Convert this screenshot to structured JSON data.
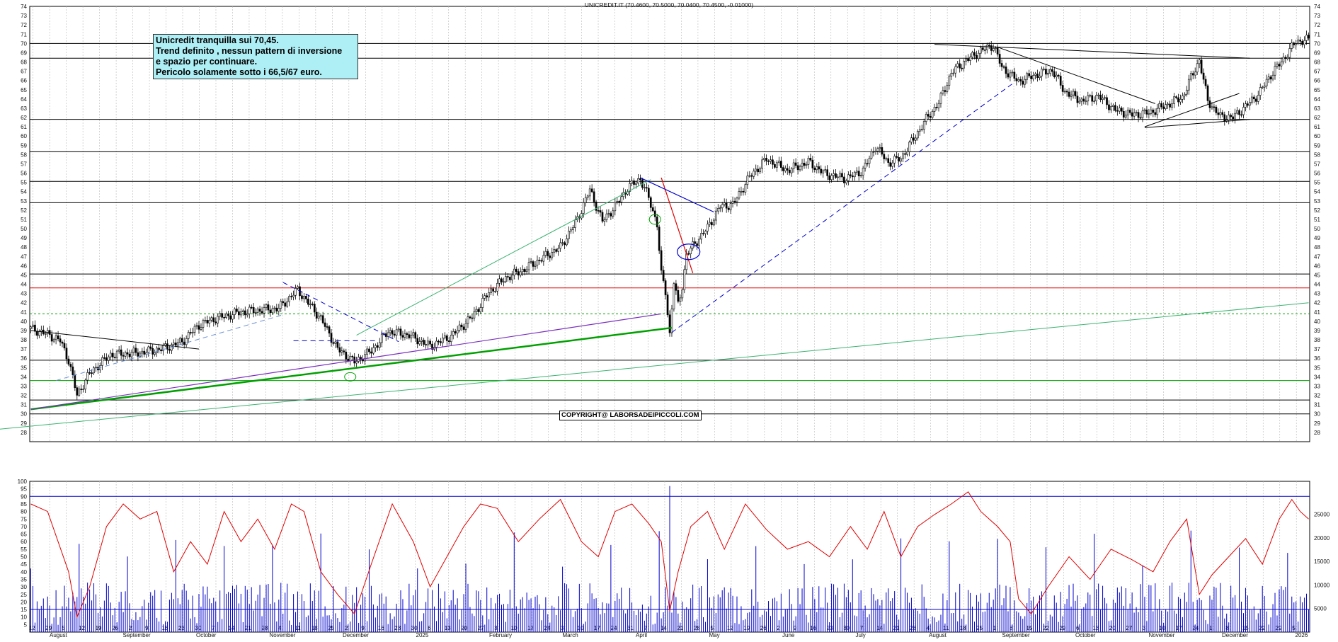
{
  "chart_data": [
    {
      "type": "candlestick",
      "title": "UNICREDIT.IT (70.4600, 70.5000, 70.0400, 70.4500, -0.01000)",
      "ylim": [
        27,
        74
      ],
      "y_ticks": [
        28,
        29,
        30,
        31,
        32,
        33,
        34,
        35,
        36,
        37,
        38,
        39,
        40,
        41,
        42,
        43,
        44,
        45,
        46,
        47,
        48,
        49,
        50,
        51,
        52,
        53,
        54,
        55,
        56,
        57,
        58,
        59,
        60,
        61,
        62,
        63,
        64,
        65,
        66,
        67,
        68,
        69,
        70,
        71,
        72,
        73,
        74
      ],
      "x_day_labels": [
        "12",
        "29",
        "5",
        "12",
        "19",
        "26",
        "2",
        "9",
        "16",
        "23",
        "30",
        "7",
        "14",
        "21",
        "28",
        "4",
        "11",
        "18",
        "25",
        "2",
        "9",
        "16",
        "23",
        "30",
        "6",
        "13",
        "20",
        "27",
        "3",
        "10",
        "17",
        "24",
        "3",
        "10",
        "17",
        "24",
        "31",
        "7",
        "14",
        "21",
        "28",
        "5",
        "12",
        "19",
        "26",
        "2",
        "9",
        "16",
        "23",
        "30",
        "7",
        "14",
        "21",
        "28",
        "4",
        "11",
        "18",
        "25",
        "1",
        "8",
        "15",
        "22",
        "29",
        "6",
        "13",
        "20",
        "27",
        "3",
        "10",
        "17",
        "24",
        "1",
        "8",
        "15",
        "22",
        "29",
        "5"
      ],
      "x_month_labels": [
        "August",
        "September",
        "October",
        "November",
        "December",
        "2025",
        "February",
        "March",
        "April",
        "May",
        "June",
        "July",
        "August",
        "September",
        "October",
        "November",
        "December",
        "2026"
      ],
      "price_path_points": [
        [
          0,
          39.2
        ],
        [
          8,
          38.6
        ],
        [
          14,
          37.9
        ],
        [
          18,
          35.8
        ],
        [
          22,
          32.0
        ],
        [
          28,
          34.4
        ],
        [
          38,
          36.4
        ],
        [
          52,
          36.6
        ],
        [
          62,
          37.0
        ],
        [
          72,
          37.8
        ],
        [
          80,
          39.6
        ],
        [
          88,
          40.3
        ],
        [
          100,
          41.0
        ],
        [
          118,
          41.4
        ],
        [
          127,
          43.4
        ],
        [
          138,
          40.3
        ],
        [
          146,
          37.0
        ],
        [
          154,
          35.6
        ],
        [
          162,
          36.8
        ],
        [
          170,
          38.9
        ],
        [
          180,
          38.5
        ],
        [
          190,
          37.3
        ],
        [
          200,
          38.4
        ],
        [
          210,
          40.5
        ],
        [
          218,
          43.1
        ],
        [
          226,
          44.7
        ],
        [
          234,
          45.5
        ],
        [
          244,
          46.9
        ],
        [
          252,
          48.0
        ],
        [
          260,
          51.0
        ],
        [
          266,
          54.2
        ],
        [
          272,
          50.8
        ],
        [
          278,
          52.4
        ],
        [
          284,
          54.4
        ],
        [
          290,
          55.4
        ],
        [
          294,
          53.3
        ],
        [
          298,
          50.5
        ],
        [
          300,
          45.0
        ],
        [
          302,
          43.2
        ],
        [
          304,
          38.6
        ],
        [
          306,
          44.3
        ],
        [
          308,
          41.7
        ],
        [
          310,
          43.8
        ],
        [
          312,
          47.2
        ],
        [
          316,
          48.4
        ],
        [
          322,
          50.1
        ],
        [
          328,
          52.4
        ],
        [
          334,
          52.6
        ],
        [
          342,
          55.6
        ],
        [
          350,
          57.5
        ],
        [
          360,
          56.3
        ],
        [
          370,
          57.2
        ],
        [
          378,
          55.9
        ],
        [
          388,
          55.4
        ],
        [
          396,
          56.3
        ],
        [
          402,
          58.9
        ],
        [
          408,
          57.1
        ],
        [
          414,
          57.6
        ],
        [
          420,
          59.7
        ],
        [
          426,
          61.8
        ],
        [
          432,
          63.6
        ],
        [
          438,
          66.8
        ],
        [
          444,
          68.0
        ],
        [
          452,
          69.2
        ],
        [
          458,
          69.8
        ],
        [
          462,
          67.4
        ],
        [
          470,
          65.9
        ],
        [
          478,
          66.6
        ],
        [
          486,
          67.1
        ],
        [
          492,
          64.8
        ],
        [
          500,
          63.8
        ],
        [
          508,
          64.3
        ],
        [
          516,
          62.8
        ],
        [
          524,
          62.3
        ],
        [
          532,
          62.5
        ],
        [
          540,
          63.3
        ],
        [
          548,
          64.2
        ],
        [
          552,
          66.3
        ],
        [
          556,
          68.2
        ],
        [
          560,
          63.8
        ],
        [
          566,
          62.1
        ],
        [
          572,
          62.0
        ],
        [
          578,
          63.2
        ],
        [
          584,
          64.5
        ],
        [
          590,
          66.6
        ],
        [
          596,
          68.3
        ],
        [
          602,
          70.2
        ],
        [
          608,
          70.4
        ]
      ],
      "n_candles": 609,
      "horizontal_levels": [
        {
          "value": 70.0,
          "color": "#000000"
        },
        {
          "value": 68.4,
          "color": "#000000"
        },
        {
          "value": 61.8,
          "color": "#000000"
        },
        {
          "value": 58.3,
          "color": "#000000"
        },
        {
          "value": 55.1,
          "color": "#000000"
        },
        {
          "value": 52.8,
          "color": "#000000"
        },
        {
          "value": 45.1,
          "color": "#000000"
        },
        {
          "value": 43.6,
          "color": "#e00000"
        },
        {
          "value": 40.8,
          "color": "#00a000",
          "dashed": true
        },
        {
          "value": 35.8,
          "color": "#000000"
        },
        {
          "value": 33.6,
          "color": "#00a000"
        },
        {
          "value": 31.5,
          "color": "#000000"
        },
        {
          "value": 30.0,
          "color": "#000000"
        }
      ],
      "annotation_lines": [
        "Unicredit tranquilla sui 70,45.",
        "Trend definito , nessun pattern di inversione",
        "e spazio per continuare.",
        "Pericolo solamente sotto i 66,5/67 euro."
      ],
      "copyright": "COPYRIGHT@ LABORSADEIPICCOLI.COM",
      "colors": {
        "up": "#ffffff",
        "down": "#000000",
        "grid": "#b8b8b8",
        "background": "#ffffff"
      }
    },
    {
      "type": "oscillator-and-volume",
      "left_ylim": [
        0,
        100
      ],
      "left_ticks": [
        5,
        10,
        15,
        20,
        25,
        30,
        35,
        40,
        45,
        50,
        55,
        60,
        65,
        70,
        75,
        80,
        85,
        90,
        95,
        100
      ],
      "right_ticks": [
        "5000",
        "10000",
        "15000",
        "20000",
        "25000"
      ],
      "levels": [
        {
          "value": 90,
          "color": "#0000cc"
        },
        {
          "value": 15,
          "color": "#0000cc"
        }
      ],
      "oscillator_color": "#e00000",
      "volume_color": "#0000cc",
      "volume_max": 32000,
      "oscillator_anchor_points": [
        [
          0,
          85
        ],
        [
          8,
          80
        ],
        [
          18,
          40
        ],
        [
          22,
          10
        ],
        [
          28,
          30
        ],
        [
          36,
          70
        ],
        [
          44,
          85
        ],
        [
          52,
          75
        ],
        [
          60,
          80
        ],
        [
          68,
          40
        ],
        [
          76,
          60
        ],
        [
          84,
          45
        ],
        [
          92,
          80
        ],
        [
          100,
          60
        ],
        [
          108,
          75
        ],
        [
          116,
          55
        ],
        [
          124,
          85
        ],
        [
          130,
          80
        ],
        [
          138,
          40
        ],
        [
          146,
          25
        ],
        [
          154,
          12
        ],
        [
          162,
          45
        ],
        [
          172,
          85
        ],
        [
          182,
          60
        ],
        [
          190,
          30
        ],
        [
          198,
          50
        ],
        [
          206,
          70
        ],
        [
          214,
          85
        ],
        [
          222,
          82
        ],
        [
          232,
          60
        ],
        [
          242,
          75
        ],
        [
          252,
          88
        ],
        [
          262,
          60
        ],
        [
          270,
          50
        ],
        [
          278,
          80
        ],
        [
          286,
          85
        ],
        [
          294,
          72
        ],
        [
          300,
          60
        ],
        [
          304,
          14
        ],
        [
          308,
          40
        ],
        [
          314,
          70
        ],
        [
          322,
          80
        ],
        [
          330,
          55
        ],
        [
          340,
          85
        ],
        [
          350,
          68
        ],
        [
          360,
          55
        ],
        [
          370,
          60
        ],
        [
          380,
          50
        ],
        [
          390,
          70
        ],
        [
          398,
          55
        ],
        [
          406,
          80
        ],
        [
          414,
          50
        ],
        [
          422,
          70
        ],
        [
          430,
          78
        ],
        [
          438,
          85
        ],
        [
          446,
          93
        ],
        [
          452,
          80
        ],
        [
          460,
          70
        ],
        [
          466,
          60
        ],
        [
          470,
          22
        ],
        [
          476,
          12
        ],
        [
          484,
          30
        ],
        [
          494,
          50
        ],
        [
          504,
          35
        ],
        [
          514,
          55
        ],
        [
          524,
          48
        ],
        [
          534,
          40
        ],
        [
          542,
          60
        ],
        [
          550,
          75
        ],
        [
          556,
          25
        ],
        [
          562,
          38
        ],
        [
          570,
          50
        ],
        [
          578,
          62
        ],
        [
          586,
          45
        ],
        [
          594,
          75
        ],
        [
          600,
          88
        ],
        [
          604,
          80
        ],
        [
          608,
          75
        ]
      ]
    }
  ]
}
